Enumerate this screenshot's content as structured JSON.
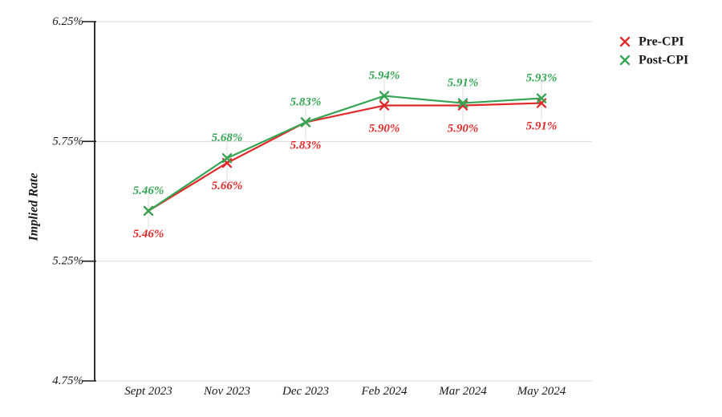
{
  "chart_data": {
    "type": "line",
    "title": "",
    "xlabel": "",
    "ylabel": "Implied Rate",
    "categories": [
      "Sept 2023",
      "Nov 2023",
      "Dec 2023",
      "Feb 2024",
      "Mar 2024",
      "May 2024"
    ],
    "series": [
      {
        "name": "Pre-CPI",
        "color": "#e02a2a",
        "values": [
          5.46,
          5.66,
          5.83,
          5.9,
          5.9,
          5.91
        ],
        "point_labels": [
          "5.46%",
          "5.66%",
          "5.83%",
          "5.90%",
          "5.90%",
          "5.91%"
        ]
      },
      {
        "name": "Post-CPI",
        "color": "#35a553",
        "values": [
          5.46,
          5.68,
          5.83,
          5.94,
          5.91,
          5.93
        ],
        "point_labels": [
          "5.46%",
          "5.68%",
          "5.83%",
          "5.94%",
          "5.91%",
          "5.93%"
        ]
      }
    ],
    "y_tick_labels": [
      "6.25%",
      "5.75%",
      "5.25%",
      "4.75%"
    ],
    "y_tick_values": [
      6.25,
      5.75,
      5.25,
      4.75
    ],
    "ylim": [
      4.75,
      6.25
    ],
    "grid": "horizontal",
    "legend_position": "top-right",
    "marker_style": "x"
  },
  "colors": {
    "grid": "#d9d9d9",
    "leader": "#dcdcdc",
    "axis": "#1a1a1a",
    "text": "#1a1a1a",
    "background": "#ffffff"
  }
}
